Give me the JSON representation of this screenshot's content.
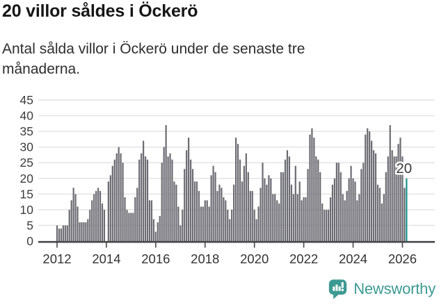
{
  "header": {
    "title": "20 villor såldes i Öckerö",
    "subtitle": "Antal sålda villor i Öckerö under de senaste tre månaderna."
  },
  "chart_data": {
    "type": "bar",
    "title": "20 villor såldes i Öckerö",
    "subtitle": "Antal sålda villor i Öckerö under de senaste tre månaderna.",
    "xlabel": "",
    "ylabel": "",
    "ylim": [
      0,
      45
    ],
    "grid": true,
    "start_year": 2012,
    "start_month": 1,
    "unit": "sålda villor per 3 månader",
    "y_ticks": [
      0,
      5,
      10,
      15,
      20,
      25,
      30,
      35,
      40,
      45
    ],
    "x_ticks": [
      2012,
      2014,
      2016,
      2018,
      2020,
      2022,
      2024,
      2026
    ],
    "bar_color": "#6b6b72",
    "grid_color": "#e2e2e2",
    "axis_color": "#47474a",
    "values": [
      5,
      4,
      4,
      5,
      5,
      5,
      10,
      13,
      17,
      15,
      11,
      6,
      6,
      6,
      6,
      7,
      10,
      13,
      15,
      16,
      17,
      16,
      12,
      10,
      0,
      19,
      21,
      24,
      26,
      28,
      30,
      28,
      25,
      14,
      10,
      9,
      9,
      9,
      14,
      17,
      26,
      28,
      32,
      27,
      26,
      13,
      13,
      7,
      3,
      6,
      8,
      25,
      30,
      37,
      27,
      28,
      26,
      19,
      18,
      11,
      5,
      10,
      23,
      29,
      33,
      26,
      23,
      19,
      19,
      16,
      11,
      11,
      13,
      13,
      11,
      21,
      24,
      22,
      16,
      18,
      17,
      14,
      13,
      10,
      7,
      10,
      18,
      33,
      31,
      26,
      19,
      24,
      28,
      22,
      16,
      16,
      10,
      7,
      11,
      17,
      25,
      20,
      18,
      21,
      20,
      15,
      15,
      13,
      12,
      22,
      22,
      26,
      29,
      27,
      18,
      15,
      24,
      15,
      19,
      13,
      14,
      14,
      23,
      34,
      36,
      33,
      27,
      26,
      22,
      12,
      10,
      10,
      10,
      14,
      18,
      20,
      25,
      25,
      22,
      15,
      13,
      16,
      20,
      24,
      20,
      19,
      13,
      15,
      23,
      25,
      34,
      36,
      35,
      32,
      29,
      28,
      18,
      17,
      12,
      15,
      22,
      27,
      37,
      29,
      27,
      27,
      31,
      33,
      27,
      17,
      20
    ],
    "highlight": {
      "index": 170,
      "value": 20,
      "label": "20",
      "color": "#18948c"
    }
  },
  "footer": {
    "brand": "Newsworthy",
    "brand_color": "#3d9a93",
    "logo_icon": "newsworthy-chart-speech-bubble"
  }
}
